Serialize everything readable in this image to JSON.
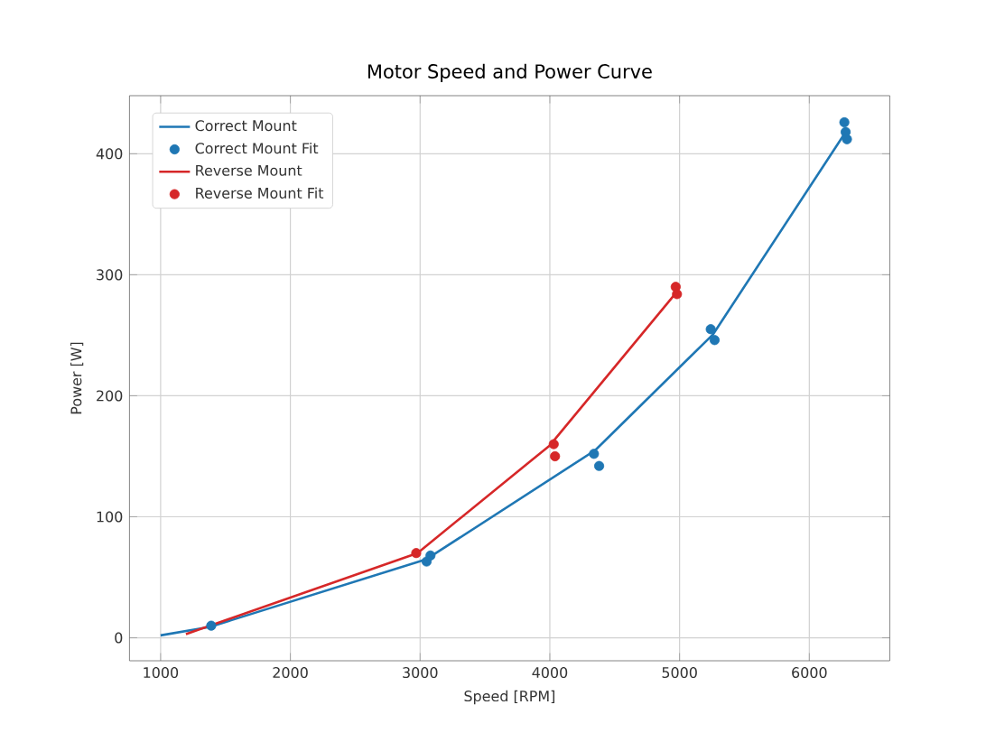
{
  "chart_data": {
    "type": "line",
    "title": "Motor Speed and Power Curve",
    "xlabel": "Speed [RPM]",
    "ylabel": "Power [W]",
    "xlim": [
      760,
      6620
    ],
    "ylim": [
      -19,
      448
    ],
    "xticks": [
      1000,
      2000,
      3000,
      4000,
      5000,
      6000
    ],
    "yticks": [
      0,
      100,
      200,
      300,
      400
    ],
    "grid": true,
    "legend": "top left",
    "series": [
      {
        "name": "Correct Mount",
        "marker": "none",
        "color": "#1f77b4",
        "x": [
          1000,
          1380,
          3050,
          4350,
          5260,
          6280
        ],
        "values": [
          2,
          9,
          65,
          155,
          251,
          418
        ]
      },
      {
        "name": "Correct Mount Fit",
        "type": "scatter",
        "marker": "circle",
        "color": "#1f77b4",
        "x": [
          1390,
          3050,
          3080,
          4340,
          4380,
          5240,
          5270,
          6270,
          6280,
          6290
        ],
        "values": [
          10,
          63,
          68,
          152,
          142,
          255,
          246,
          426,
          418,
          412
        ]
      },
      {
        "name": "Reverse Mount",
        "marker": "none",
        "color": "#d62728",
        "x": [
          1195,
          2980,
          4000,
          4980
        ],
        "values": [
          3,
          70,
          159,
          286
        ]
      },
      {
        "name": "Reverse Mount Fit",
        "type": "scatter",
        "marker": "circle",
        "color": "#d62728",
        "x": [
          2970,
          4030,
          4040,
          4970,
          4980
        ],
        "values": [
          70,
          160,
          150,
          290,
          284
        ]
      }
    ]
  }
}
